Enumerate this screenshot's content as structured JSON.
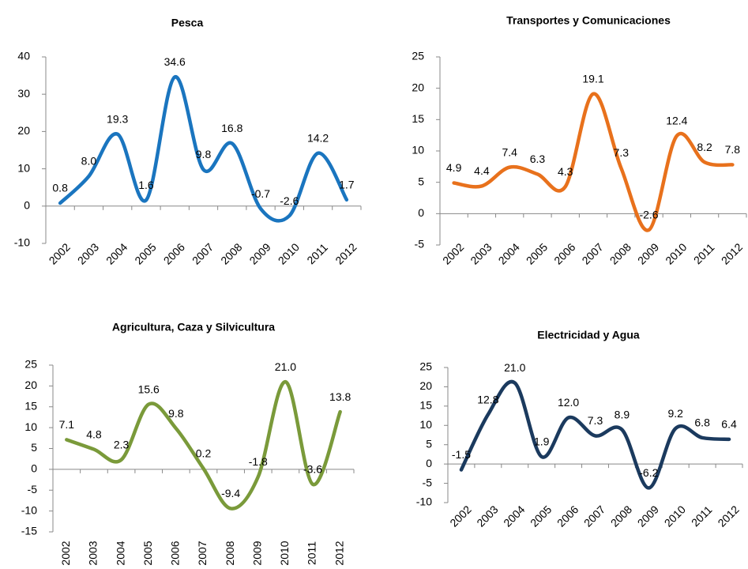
{
  "chart_data": [
    {
      "type": "line",
      "title": "Pesca",
      "color": "#1a75bf",
      "categories": [
        "2002",
        "2003",
        "2004",
        "2005",
        "2006",
        "2007",
        "2008",
        "2009",
        "2010",
        "2011",
        "2012"
      ],
      "values": [
        0.8,
        8.0,
        19.3,
        1.6,
        34.6,
        9.8,
        16.8,
        -0.7,
        -2.6,
        14.2,
        1.7
      ],
      "value_labels": [
        "0.8",
        "8.0",
        "19.3",
        "1.6",
        "34.6",
        "9.8",
        "16.8",
        "-0.7",
        "-2.6",
        "14.2",
        "1.7"
      ],
      "ylim": [
        -10,
        40
      ],
      "yticks": [
        -10,
        0,
        10,
        20,
        30,
        40
      ]
    },
    {
      "type": "line",
      "title": "Transportes y Comunicaciones",
      "color": "#e8711c",
      "categories": [
        "2002",
        "2003",
        "2004",
        "2005",
        "2006",
        "2007",
        "2008",
        "2009",
        "2010",
        "2011",
        "2012"
      ],
      "values": [
        4.9,
        4.4,
        7.4,
        6.3,
        4.3,
        19.1,
        7.3,
        -2.6,
        12.4,
        8.2,
        7.8
      ],
      "value_labels": [
        "4.9",
        "4.4",
        "7.4",
        "6.3",
        "4.3",
        "19.1",
        "7.3",
        "-2.6",
        "12.4",
        "8.2",
        "7.8"
      ],
      "ylim": [
        -5,
        25
      ],
      "yticks": [
        -5,
        0,
        5,
        10,
        15,
        20,
        25
      ]
    },
    {
      "type": "line",
      "title": "Agricultura, Caza y Silvicultura",
      "color": "#7a9a3a",
      "categories": [
        "2002",
        "2003",
        "2004",
        "2005",
        "2006",
        "2007",
        "2008",
        "2009",
        "2010",
        "2011",
        "2012"
      ],
      "values": [
        7.1,
        4.8,
        2.3,
        15.6,
        9.8,
        0.2,
        -9.4,
        -1.8,
        21.0,
        -3.6,
        13.8
      ],
      "value_labels": [
        "7.1",
        "4.8",
        "2.3",
        "15.6",
        "9.8",
        "0.2",
        "-9.4",
        "-1.8",
        "21.0",
        "-3.6",
        "13.8"
      ],
      "ylim": [
        -15,
        25
      ],
      "yticks": [
        -15,
        -10,
        -5,
        0,
        5,
        10,
        15,
        20,
        25
      ]
    },
    {
      "type": "line",
      "title": "Electricidad y Agua",
      "color": "#1b3a5e",
      "categories": [
        "2002",
        "2003",
        "2004",
        "2005",
        "2006",
        "2007",
        "2008",
        "2009",
        "2010",
        "2011",
        "2012"
      ],
      "values": [
        -1.5,
        12.8,
        21.0,
        1.9,
        12.0,
        7.3,
        8.9,
        -6.2,
        9.2,
        6.8,
        6.4
      ],
      "value_labels": [
        "-1.5",
        "12.8",
        "21.0",
        "1.9",
        "12.0",
        "7.3",
        "8.9",
        "-6.2",
        "9.2",
        "6.8",
        "6.4"
      ],
      "ylim": [
        -10,
        25
      ],
      "yticks": [
        -10,
        -5,
        0,
        5,
        10,
        15,
        20,
        25
      ]
    }
  ]
}
